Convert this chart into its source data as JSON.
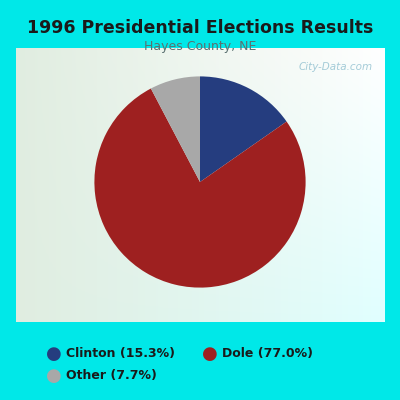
{
  "title": "1996 Presidential Elections Results",
  "subtitle": "Hayes County, NE",
  "slices": [
    15.3,
    77.0,
    7.7
  ],
  "labels": [
    "Clinton",
    "Dole",
    "Other"
  ],
  "colors": [
    "#253d7f",
    "#9e2020",
    "#a8a8a8"
  ],
  "legend_labels": [
    "Clinton (15.3%)",
    "Dole (77.0%)",
    "Other (7.7%)"
  ],
  "background_color": "#00e8e8",
  "plot_bg_color": "#e8f0e0",
  "title_color": "#1a1a1a",
  "subtitle_color": "#5a7070",
  "watermark": "City-Data.com",
  "startangle": 90
}
